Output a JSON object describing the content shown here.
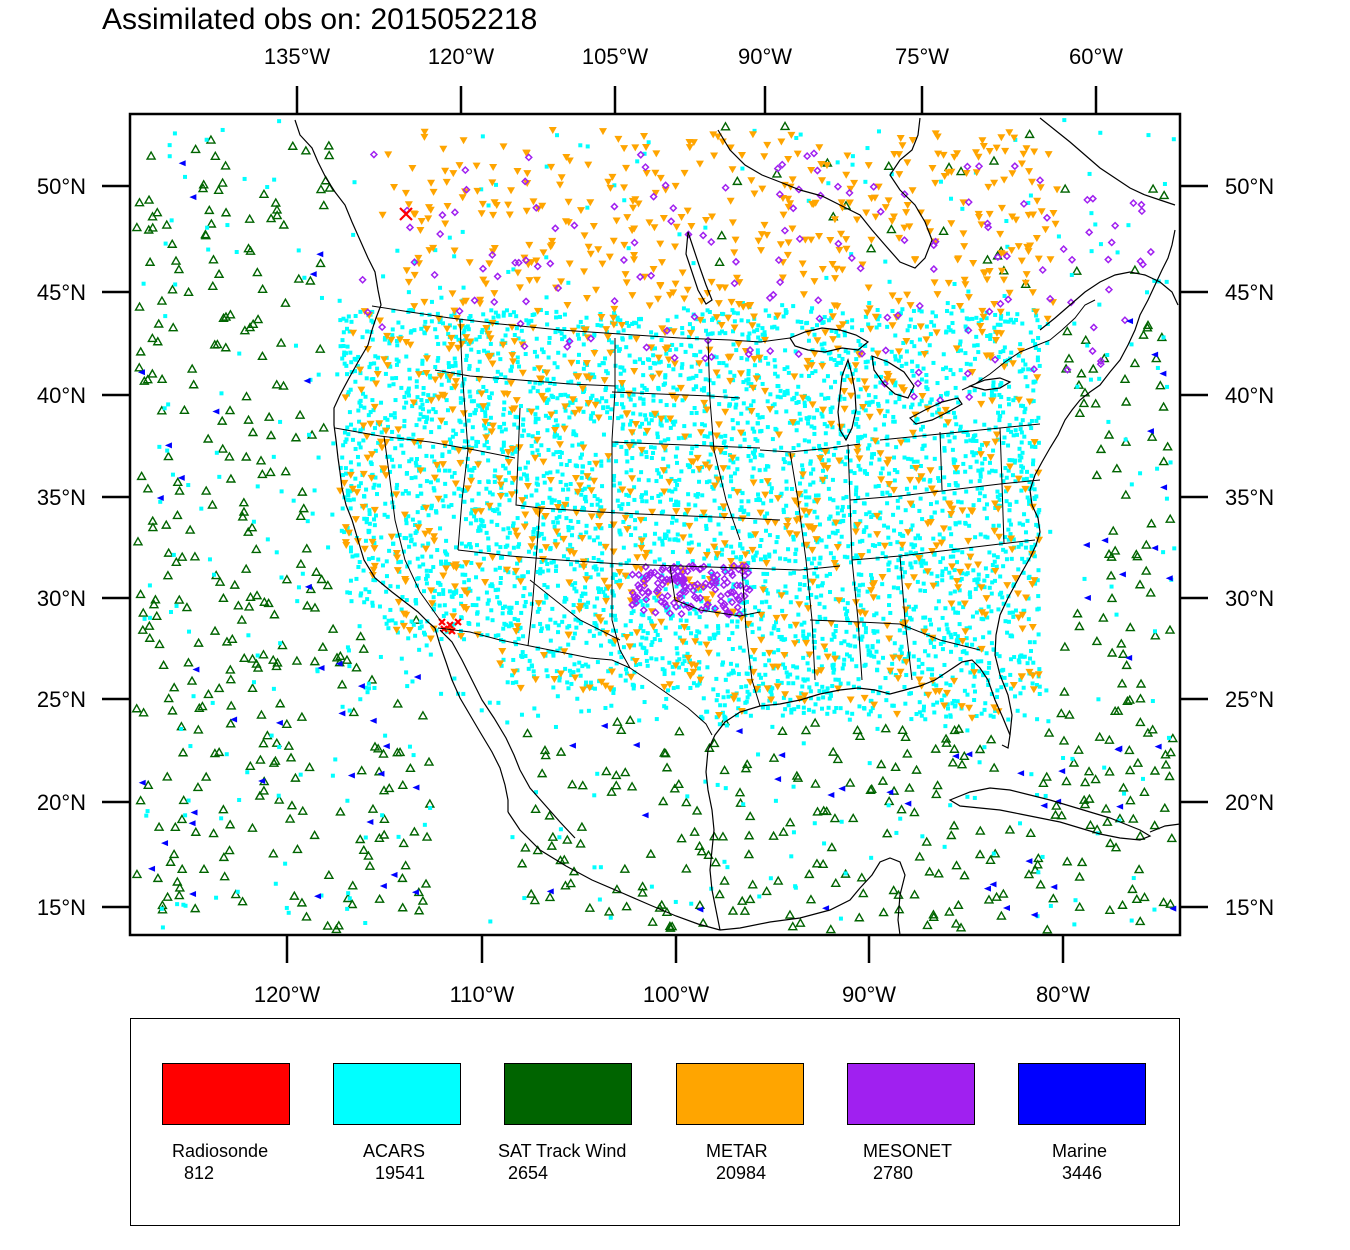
{
  "title": "Assimilated obs on: 2015052218",
  "axes": {
    "top_ticks": [
      "135°W",
      "120°W",
      "105°W",
      "90°W",
      "75°W",
      "60°W"
    ],
    "bottom_ticks": [
      "120°W",
      "110°W",
      "100°W",
      "90°W",
      "80°W"
    ],
    "left_ticks": [
      "50°N",
      "45°N",
      "40°N",
      "35°N",
      "30°N",
      "25°N",
      "20°N",
      "15°N"
    ],
    "right_ticks": [
      "50°N",
      "45°N",
      "40°N",
      "35°N",
      "30°N",
      "25°N",
      "20°N",
      "15°N"
    ]
  },
  "legend": [
    {
      "label": "Radiosonde",
      "count": "812",
      "color": "#ff0000",
      "symbol": "x"
    },
    {
      "label": "ACARS",
      "count": "19541",
      "color": "#00ffff",
      "symbol": "square"
    },
    {
      "label": "SAT Track Wind",
      "count": "2654",
      "color": "#006400",
      "symbol": "triangle-up"
    },
    {
      "label": "METAR",
      "count": "20984",
      "color": "#ffa500",
      "symbol": "triangle-down"
    },
    {
      "label": "MESONET",
      "count": "2780",
      "color": "#a020f0",
      "symbol": "diamond"
    },
    {
      "label": "Marine",
      "count": "3446",
      "color": "#0000ff",
      "symbol": "triangle-left"
    }
  ]
}
